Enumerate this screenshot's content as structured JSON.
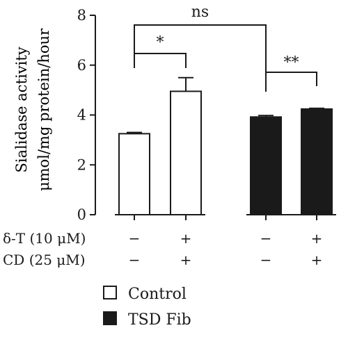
{
  "chart_data": {
    "type": "bar",
    "ylabel_line1": "Sialidase activity",
    "ylabel_line2": "μmol/mg protein/hour",
    "ylim": [
      0,
      8
    ],
    "yticks": [
      0,
      2,
      4,
      6,
      8
    ],
    "grid": false,
    "bars": [
      {
        "group": "Control",
        "value": 3.25,
        "error": 0.05
      },
      {
        "group": "Control",
        "value": 4.95,
        "error": 0.55
      },
      {
        "group": "TSD Fib",
        "value": 3.92,
        "error": 0.06
      },
      {
        "group": "TSD Fib",
        "value": 4.24,
        "error": 0.03
      }
    ],
    "significance": [
      {
        "label": "*",
        "from": 0,
        "to": 1
      },
      {
        "label": "**",
        "from": 2,
        "to": 3
      },
      {
        "label": "ns",
        "from": 0,
        "to": 2
      }
    ],
    "treatments": [
      {
        "label": "δ-T (10 μM)",
        "signs": [
          "−",
          "+",
          "−",
          "+"
        ]
      },
      {
        "label": "CD (25 μM)",
        "signs": [
          "−",
          "+",
          "−",
          "+"
        ]
      }
    ],
    "legend": [
      {
        "label": "Control",
        "fill": "#ffffff"
      },
      {
        "label": "TSD Fib",
        "fill": "#1a1a1a"
      }
    ],
    "legend_position": "bottom-left"
  }
}
